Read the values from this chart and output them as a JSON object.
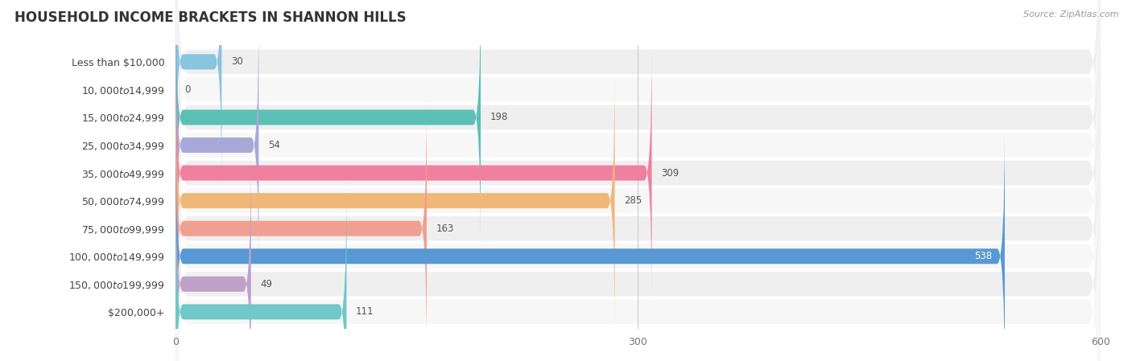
{
  "title": "HOUSEHOLD INCOME BRACKETS IN SHANNON HILLS",
  "source": "Source: ZipAtlas.com",
  "categories": [
    "Less than $10,000",
    "$10,000 to $14,999",
    "$15,000 to $24,999",
    "$25,000 to $34,999",
    "$35,000 to $49,999",
    "$50,000 to $74,999",
    "$75,000 to $99,999",
    "$100,000 to $149,999",
    "$150,000 to $199,999",
    "$200,000+"
  ],
  "values": [
    30,
    0,
    198,
    54,
    309,
    285,
    163,
    538,
    49,
    111
  ],
  "bar_colors": [
    "#89C4E1",
    "#C9A8D4",
    "#5BBFB5",
    "#A8A8D8",
    "#F080A0",
    "#F0B878",
    "#F0A090",
    "#5898D4",
    "#C0A0C8",
    "#70C8C8"
  ],
  "row_bg_colors": [
    "#efefef",
    "#f7f7f7"
  ],
  "xlim": [
    0,
    600
  ],
  "xticks": [
    0,
    300,
    600
  ],
  "title_fontsize": 12,
  "label_fontsize": 9,
  "value_fontsize": 8.5,
  "bar_height": 0.55,
  "value_538_color": "#ffffff"
}
